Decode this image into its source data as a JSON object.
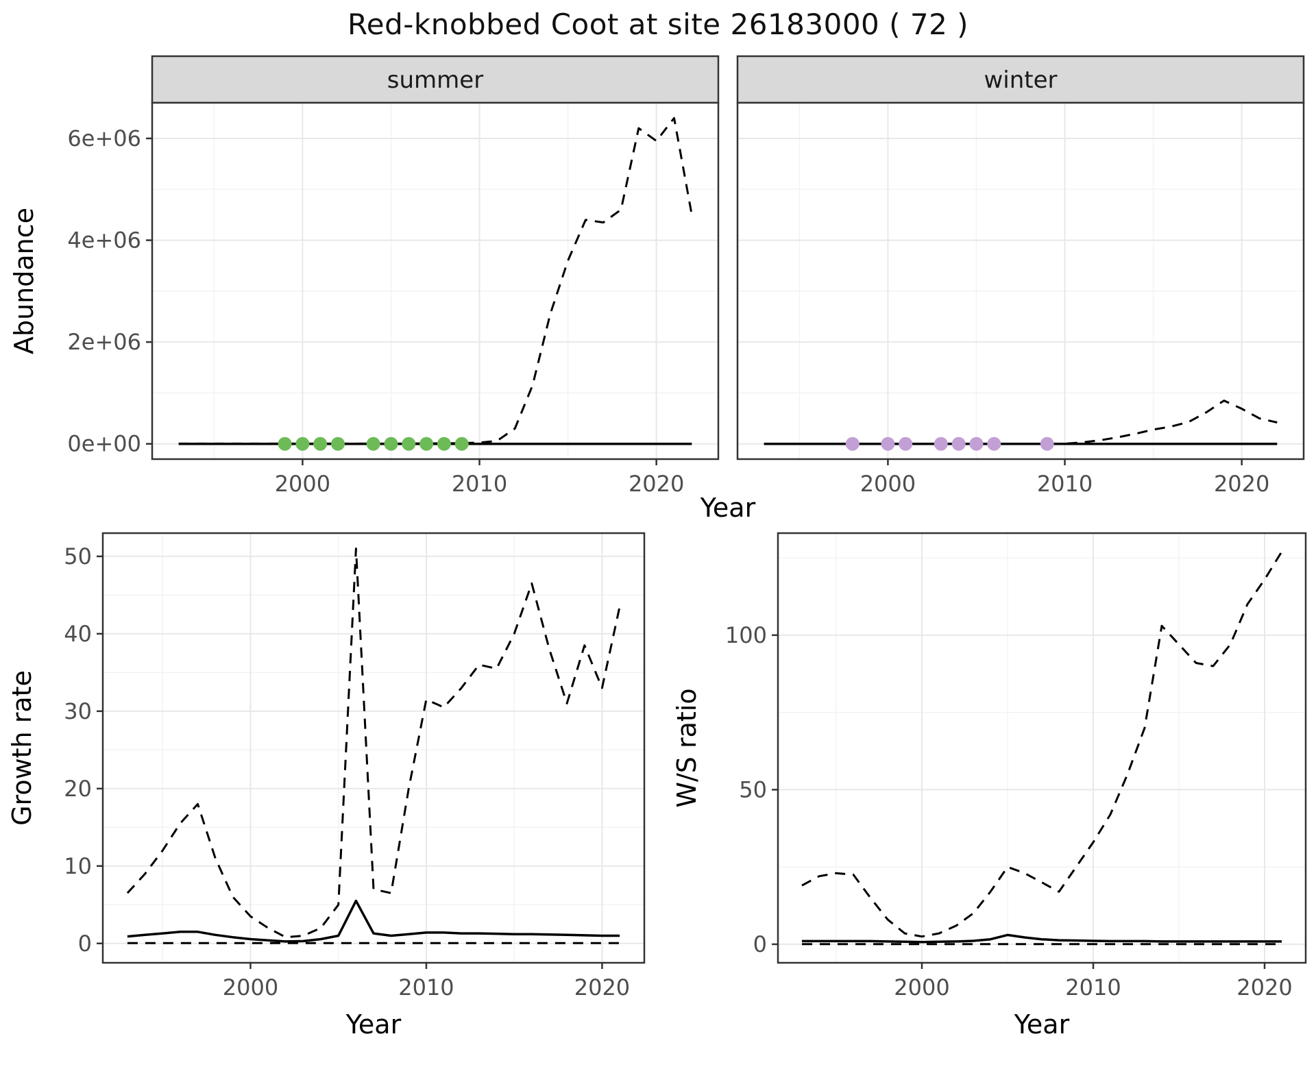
{
  "title": "Red-knobbed Coot at site 26183000 ( 72 )",
  "labels": {
    "x_axis": "Year",
    "abundance_axis": "Abundance",
    "growth_axis": "Growth rate",
    "ws_axis": "W/S ratio",
    "facet_summer": "summer",
    "facet_winter": "winter"
  },
  "colors": {
    "line": "#000000",
    "summer_point": "#6dbb57",
    "winter_point": "#c29fd4",
    "strip_bg": "#d9d9d9",
    "panel_border": "#333333",
    "grid_major": "#e8e8e8",
    "grid_minor": "#f3f3f3",
    "tick_mark": "#333333",
    "tick_text": "#4d4d4d",
    "axis_label": "#000000"
  },
  "chart_data": [
    {
      "id": "abundance_summer",
      "type": "line",
      "facet_label": "summer",
      "xlabel": "Year",
      "ylabel": "Abundance",
      "xlim": [
        1991.5,
        2023.5
      ],
      "ylim": [
        -300000,
        6700000
      ],
      "xticks": [
        2000,
        2010,
        2020
      ],
      "xtick_labels": [
        "2000",
        "2010",
        "2020"
      ],
      "xminor": [
        1995,
        2005,
        2015
      ],
      "yticks": [
        0,
        2000000,
        4000000,
        6000000
      ],
      "ytick_labels": [
        "0e+00",
        "2e+06",
        "4e+06",
        "6e+06"
      ],
      "yminor": [
        1000000,
        3000000,
        5000000
      ],
      "x": [
        1993,
        1994,
        1995,
        1996,
        1997,
        1998,
        1999,
        2000,
        2001,
        2002,
        2003,
        2004,
        2005,
        2006,
        2007,
        2008,
        2009,
        2010,
        2011,
        2012,
        2013,
        2014,
        2015,
        2016,
        2017,
        2018,
        2019,
        2020,
        2021,
        2022
      ],
      "series": [
        {
          "name": "modelled-trend",
          "style": "dashed",
          "values": [
            4000,
            4000,
            4000,
            4000,
            4000,
            4000,
            4000,
            4000,
            4000,
            4000,
            4000,
            4000,
            4000,
            6000,
            8000,
            10000,
            15000,
            25000,
            60000,
            300000,
            1150000,
            2550000,
            3600000,
            4400000,
            4350000,
            4600000,
            6200000,
            5950000,
            6400000,
            4500000
          ]
        },
        {
          "name": "observed-counts",
          "style": "solid",
          "values": [
            0,
            0,
            0,
            0,
            0,
            0,
            0,
            0,
            0,
            0,
            0,
            0,
            0,
            0,
            0,
            0,
            0,
            0,
            0,
            0,
            0,
            0,
            0,
            0,
            0,
            0,
            0,
            0,
            0,
            0
          ]
        }
      ],
      "points": {
        "name": "summer-survey-years",
        "color": "#6dbb57",
        "x": [
          1999,
          2000,
          2001,
          2002,
          2004,
          2005,
          2006,
          2007,
          2008,
          2009
        ],
        "y": [
          0,
          0,
          0,
          0,
          0,
          0,
          0,
          0,
          0,
          0
        ]
      }
    },
    {
      "id": "abundance_winter",
      "type": "line",
      "facet_label": "winter",
      "xlabel": "Year",
      "ylabel": "Abundance",
      "xlim": [
        1991.5,
        2023.5
      ],
      "ylim": [
        -300000,
        6700000
      ],
      "xticks": [
        2000,
        2010,
        2020
      ],
      "xtick_labels": [
        "2000",
        "2010",
        "2020"
      ],
      "xminor": [
        1995,
        2005,
        2015
      ],
      "yticks": [
        0,
        2000000,
        4000000,
        6000000
      ],
      "ytick_labels": [
        "0e+00",
        "2e+06",
        "4e+06",
        "6e+06"
      ],
      "yminor": [
        1000000,
        3000000,
        5000000
      ],
      "x": [
        1993,
        1994,
        1995,
        1996,
        1997,
        1998,
        1999,
        2000,
        2001,
        2002,
        2003,
        2004,
        2005,
        2006,
        2007,
        2008,
        2009,
        2010,
        2011,
        2012,
        2013,
        2014,
        2015,
        2016,
        2017,
        2018,
        2019,
        2020,
        2021,
        2022
      ],
      "series": [
        {
          "name": "modelled-trend",
          "style": "dashed",
          "values": [
            3000,
            3000,
            3000,
            3000,
            3000,
            3000,
            3000,
            3000,
            3000,
            3000,
            3000,
            3000,
            3000,
            3000,
            3000,
            3000,
            3000,
            3000,
            30000,
            70000,
            130000,
            200000,
            280000,
            340000,
            430000,
            620000,
            850000,
            690000,
            500000,
            420000
          ]
        },
        {
          "name": "observed-counts",
          "style": "solid",
          "values": [
            0,
            0,
            0,
            0,
            0,
            0,
            0,
            0,
            0,
            0,
            0,
            0,
            0,
            0,
            0,
            0,
            0,
            0,
            0,
            0,
            0,
            0,
            0,
            0,
            0,
            0,
            0,
            0,
            0,
            0
          ]
        }
      ],
      "points": {
        "name": "winter-survey-years",
        "color": "#c29fd4",
        "x": [
          1998,
          2000,
          2001,
          2003,
          2004,
          2005,
          2006,
          2009
        ],
        "y": [
          0,
          0,
          0,
          0,
          0,
          0,
          0,
          0
        ]
      }
    },
    {
      "id": "growth_rate",
      "type": "line",
      "xlabel": "Year",
      "ylabel": "Growth rate",
      "xlim": [
        1991.6,
        2022.4
      ],
      "ylim": [
        -2.5,
        53
      ],
      "xticks": [
        2000,
        2010,
        2020
      ],
      "xtick_labels": [
        "2000",
        "2010",
        "2020"
      ],
      "xminor": [
        1995,
        2005,
        2015
      ],
      "yticks": [
        0,
        10,
        20,
        30,
        40,
        50
      ],
      "ytick_labels": [
        "0",
        "10",
        "20",
        "30",
        "40",
        "50"
      ],
      "yminor": [
        5,
        15,
        25,
        35,
        45
      ],
      "x": [
        1993,
        1994,
        1995,
        1996,
        1997,
        1998,
        1999,
        2000,
        2001,
        2002,
        2003,
        2004,
        2005,
        2006,
        2007,
        2008,
        2009,
        2010,
        2011,
        2012,
        2013,
        2014,
        2015,
        2016,
        2017,
        2018,
        2019,
        2020,
        2021
      ],
      "series": [
        {
          "name": "upper-ci",
          "style": "dashed",
          "values": [
            6.5,
            9,
            12,
            15.5,
            18,
            11,
            6,
            3.5,
            2,
            0.8,
            1,
            2,
            5,
            51,
            7,
            6.5,
            20,
            31.5,
            30.5,
            33,
            36,
            35.5,
            40,
            46.5,
            38,
            31,
            38.5,
            33,
            43.5
          ]
        },
        {
          "name": "mean",
          "style": "solid",
          "values": [
            0.9,
            1.1,
            1.3,
            1.5,
            1.5,
            1.1,
            0.8,
            0.55,
            0.4,
            0.25,
            0.3,
            0.55,
            1,
            5.5,
            1.3,
            1,
            1.2,
            1.4,
            1.4,
            1.3,
            1.3,
            1.25,
            1.2,
            1.2,
            1.15,
            1.1,
            1.05,
            1,
            1
          ]
        },
        {
          "name": "lower-ci",
          "style": "dashed",
          "values": [
            0.05,
            0.05,
            0.05,
            0.05,
            0.05,
            0.05,
            0.05,
            0.05,
            0.05,
            0.05,
            0.05,
            0.05,
            0.05,
            0.05,
            0.05,
            0.05,
            0.05,
            0.05,
            0.05,
            0.05,
            0.05,
            0.05,
            0.05,
            0.05,
            0.05,
            0.05,
            0.05,
            0.05,
            0.05
          ]
        }
      ]
    },
    {
      "id": "ws_ratio",
      "type": "line",
      "xlabel": "Year",
      "ylabel": "W/S ratio",
      "xlim": [
        1991.6,
        2022.4
      ],
      "ylim": [
        -6,
        133
      ],
      "xticks": [
        2000,
        2010,
        2020
      ],
      "xtick_labels": [
        "2000",
        "2010",
        "2020"
      ],
      "xminor": [
        1995,
        2005,
        2015
      ],
      "yticks": [
        0,
        50,
        100
      ],
      "ytick_labels": [
        "0",
        "50",
        "100"
      ],
      "yminor": [
        25,
        75,
        125
      ],
      "x": [
        1993,
        1994,
        1995,
        1996,
        1997,
        1998,
        1999,
        2000,
        2001,
        2002,
        2003,
        2004,
        2005,
        2006,
        2007,
        2008,
        2009,
        2010,
        2011,
        2012,
        2013,
        2014,
        2015,
        2016,
        2017,
        2018,
        2019,
        2020,
        2021
      ],
      "series": [
        {
          "name": "upper-ci",
          "style": "dashed",
          "values": [
            19,
            22,
            23,
            22.5,
            15,
            8,
            3.5,
            2.5,
            3.5,
            6,
            10,
            17,
            25,
            23,
            20,
            17,
            25,
            33,
            42,
            55,
            70,
            103,
            97,
            91,
            90,
            97,
            110,
            118,
            127
          ]
        },
        {
          "name": "mean",
          "style": "solid",
          "values": [
            1,
            1,
            1,
            1,
            1,
            0.9,
            0.8,
            0.7,
            0.8,
            0.9,
            1.1,
            1.6,
            3,
            2.2,
            1.6,
            1.3,
            1.2,
            1.1,
            1,
            1,
            1,
            0.9,
            0.9,
            0.9,
            0.9,
            0.9,
            0.9,
            0.9,
            0.9
          ]
        },
        {
          "name": "lower-ci",
          "style": "dashed",
          "values": [
            0.05,
            0.05,
            0.05,
            0.05,
            0.05,
            0.05,
            0.05,
            0.05,
            0.05,
            0.05,
            0.05,
            0.05,
            0.05,
            0.05,
            0.05,
            0.05,
            0.05,
            0.05,
            0.05,
            0.05,
            0.05,
            0.05,
            0.05,
            0.05,
            0.05,
            0.05,
            0.05,
            0.05,
            0.05
          ]
        }
      ]
    }
  ]
}
